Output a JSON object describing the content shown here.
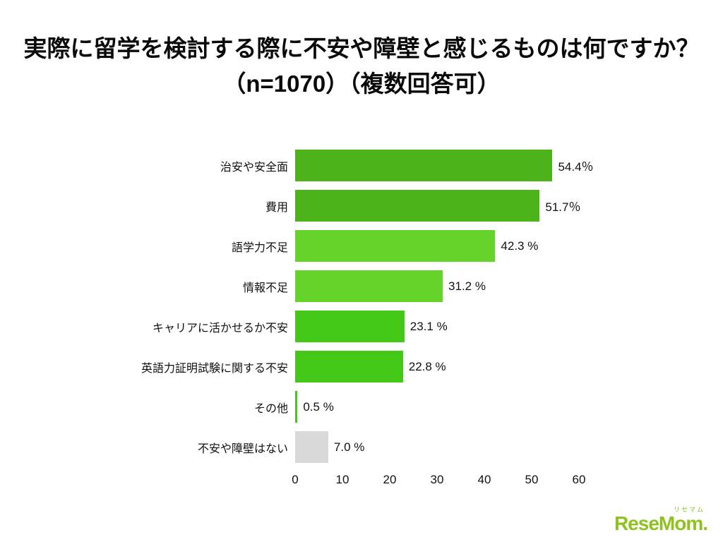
{
  "title": {
    "line1": "実際に留学を検討する際に不安や障壁と感じるものは何ですか？",
    "line2": "（n=1070）（複数回答可）"
  },
  "chart_data": {
    "type": "bar",
    "orientation": "horizontal",
    "title": "実際に留学を検討する際に不安や障壁と感じるものは何ですか？（n=1070）（複数回答可）",
    "categories": [
      "治安や安全面",
      "費用",
      "語学力不足",
      "情報不足",
      "キャリアに活かせるか不安",
      "英語力証明試験に関する不安",
      "その他",
      "不安や障壁はない"
    ],
    "values": [
      54.4,
      51.7,
      42.3,
      31.2,
      23.1,
      22.8,
      0.5,
      7.0
    ],
    "value_labels": [
      "54.4％",
      "51.7％",
      "42.3 %",
      "31.2 %",
      "23.1 %",
      "22.8 %",
      "0.5 %",
      "7.0 %"
    ],
    "bar_colors": [
      "#4db31a",
      "#4db31a",
      "#66d32b",
      "#66d32b",
      "#44c818",
      "#44c818",
      "#44c818",
      "#d9d9d9"
    ],
    "xlim": [
      0,
      60
    ],
    "x_ticks": [
      "0",
      "10",
      "20",
      "30",
      "40",
      "50",
      "60"
    ],
    "grid": false,
    "legend": false
  },
  "logo": {
    "ruby": "リセマム",
    "text": "ReseMom."
  }
}
